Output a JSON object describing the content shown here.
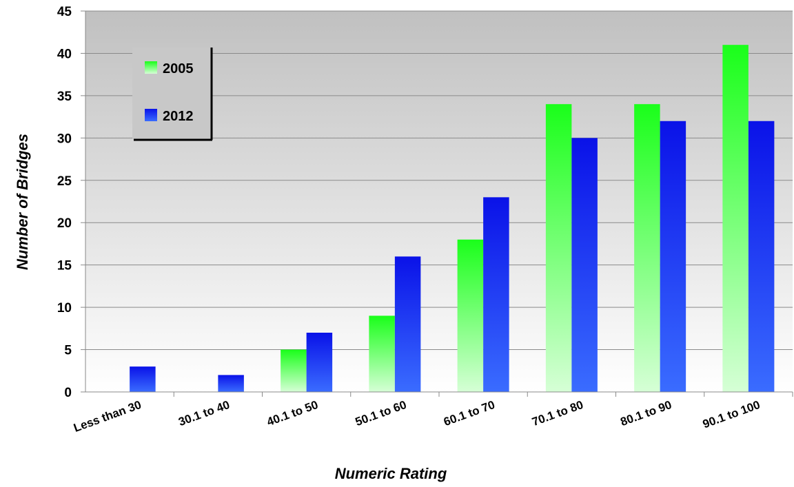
{
  "chart_data": {
    "type": "bar",
    "title": "",
    "xlabel": "Numeric Rating",
    "ylabel": "Number of Bridges",
    "ylim": [
      0,
      45
    ],
    "yticks": [
      0,
      5,
      10,
      15,
      20,
      25,
      30,
      35,
      40,
      45
    ],
    "categories": [
      "Less than 30",
      "30.1 to 40",
      "40.1 to 50",
      "50.1 to 60",
      "60.1 to 70",
      "70.1 to 80",
      "80.1 to 90",
      "90.1 to 100"
    ],
    "series": [
      {
        "name": "2005",
        "values": [
          0,
          0,
          5,
          9,
          18,
          34,
          34,
          41
        ]
      },
      {
        "name": "2012",
        "values": [
          3,
          2,
          7,
          16,
          23,
          30,
          32,
          32
        ]
      }
    ],
    "grid": true,
    "legend": {
      "position": "top-left"
    }
  },
  "colors": {
    "series_2005_top": "#1aff1a",
    "series_2005_bottom": "#d6ffd6",
    "series_2012_top": "#0a12e8",
    "series_2012_bottom": "#3a6cff",
    "plot_bg_top": "#c0c0c0",
    "plot_bg_bottom": "#ffffff",
    "legend_bg": "#c8c8c8",
    "gridline": "#8a8a8a"
  }
}
